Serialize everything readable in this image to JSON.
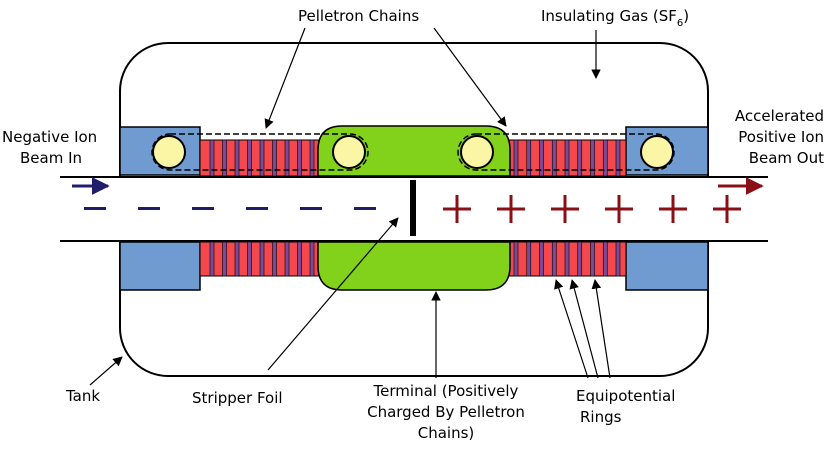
{
  "labels": {
    "pelletron_chains": "Pelletron Chains",
    "insulating_gas": "Insulating Gas (SF",
    "insulating_gas_subscript": "6",
    "insulating_gas_close": ")",
    "negative_ion_line1": "Negative Ion",
    "negative_ion_line2": "Beam In",
    "accelerated_line1": "Accelerated",
    "accelerated_line2": "Positive Ion",
    "accelerated_line3": "Beam Out",
    "tank": "Tank",
    "stripper_foil": "Stripper Foil",
    "terminal_line1": "Terminal (Positively",
    "terminal_line2": "Charged By Pelletron",
    "terminal_line3": "Chains)",
    "equipotential_line1": "Equipotential",
    "equipotential_line2": "Rings"
  },
  "beam": {
    "negative_marks": [
      "−",
      "−",
      "−",
      "−",
      "−",
      "−"
    ],
    "positive_marks": [
      "+",
      "+",
      "+",
      "+",
      "+",
      "+"
    ]
  },
  "colors": {
    "outline": "#000000",
    "end_block": "#6f9bd1",
    "column": "#f4484c",
    "terminal": "#82d11a",
    "pulley": "#fbf6a6",
    "ring": "#7a4a98",
    "negative": "#1f1c6a",
    "positive": "#8b1016"
  }
}
